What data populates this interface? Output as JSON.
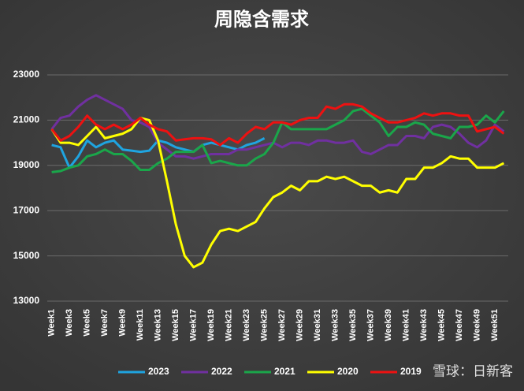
{
  "chart_data": {
    "type": "line",
    "title": "周隐含需求",
    "categories": [
      "Week1",
      null,
      "Week3",
      null,
      "Week5",
      null,
      "Week7",
      null,
      "Week9",
      null,
      "Week11",
      null,
      "Week13",
      null,
      "Week15",
      null,
      "Week17",
      null,
      "Week19",
      null,
      "Week21",
      null,
      "Week23",
      null,
      "Week25",
      null,
      "Week27",
      null,
      "Week29",
      null,
      "Week31",
      null,
      "Week33",
      null,
      "Week35",
      null,
      "Week37",
      null,
      "Week39",
      null,
      "Week41",
      null,
      "Week43",
      null,
      "Week45",
      null,
      "Week47",
      null,
      "Week49",
      null,
      "Week51",
      null
    ],
    "ylim": [
      13000,
      23000
    ],
    "yticks": [
      13000,
      15000,
      17000,
      19000,
      21000,
      23000
    ],
    "grid": true,
    "legend": "bottom",
    "series": [
      {
        "name": "2023",
        "color": "#1fa4e0",
        "values": [
          19900,
          19800,
          18900,
          19400,
          20100,
          19800,
          20000,
          20100,
          19700,
          19650,
          19600,
          19650,
          20100,
          20000,
          19800,
          19700,
          19600,
          19900,
          20000,
          19900,
          19800,
          19700,
          19900,
          20000,
          20200,
          null,
          null,
          null,
          null,
          null,
          null,
          null,
          null,
          null,
          null,
          null,
          null,
          null,
          null,
          null,
          null,
          null,
          null,
          null,
          null,
          null,
          null,
          null,
          null,
          null,
          null,
          null
        ]
      },
      {
        "name": "2022",
        "color": "#7030a0",
        "values": [
          20600,
          21100,
          21200,
          21600,
          21900,
          22100,
          21900,
          21700,
          21500,
          21000,
          20900,
          20700,
          20000,
          19700,
          19400,
          19400,
          19300,
          19400,
          19500,
          19500,
          19500,
          19700,
          19700,
          19800,
          19900,
          20000,
          19800,
          20000,
          20000,
          19900,
          20100,
          20100,
          20000,
          20000,
          20100,
          19600,
          19500,
          19700,
          19900,
          19900,
          20300,
          20300,
          20200,
          20700,
          20800,
          20700,
          20400,
          20000,
          19800,
          20100,
          20800,
          20500
        ]
      },
      {
        "name": "2021",
        "color": "#1aa64a",
        "values": [
          18700,
          18750,
          18900,
          19000,
          19400,
          19500,
          19700,
          19500,
          19500,
          19200,
          18800,
          18800,
          19100,
          19300,
          19600,
          19600,
          19600,
          19900,
          19100,
          19200,
          19100,
          19000,
          19000,
          19300,
          19500,
          20000,
          20900,
          20600,
          20600,
          20600,
          20600,
          20600,
          20800,
          21000,
          21400,
          21500,
          21200,
          20900,
          20300,
          20700,
          20700,
          20900,
          20800,
          20400,
          20300,
          20200,
          20700,
          20700,
          20800,
          21200,
          20900,
          21400
        ]
      },
      {
        "name": "2020",
        "color": "#ffff00",
        "values": [
          20600,
          20000,
          20000,
          19900,
          20300,
          20700,
          20200,
          20300,
          20400,
          20600,
          21100,
          21000,
          20100,
          18300,
          16400,
          15000,
          14500,
          14700,
          15500,
          16100,
          16200,
          16100,
          16300,
          16500,
          17100,
          17600,
          17800,
          18100,
          17900,
          18300,
          18300,
          18500,
          18400,
          18500,
          18300,
          18100,
          18100,
          17800,
          17900,
          17800,
          18400,
          18400,
          18900,
          18900,
          19100,
          19400,
          19300,
          19300,
          18900,
          18900,
          18900,
          19100
        ]
      },
      {
        "name": "2019",
        "color": "#ee1111",
        "values": [
          20600,
          20100,
          20300,
          20700,
          21200,
          20800,
          20600,
          20800,
          20600,
          20800,
          21100,
          20800,
          20600,
          20500,
          20100,
          20150,
          20200,
          20200,
          20150,
          19900,
          20200,
          20000,
          20400,
          20700,
          20600,
          20900,
          20900,
          20800,
          21000,
          21100,
          21100,
          21600,
          21500,
          21700,
          21700,
          21600,
          21300,
          21100,
          20900,
          20900,
          21000,
          21100,
          21300,
          21200,
          21300,
          21300,
          21200,
          21200,
          20500,
          20600,
          20700,
          20400
        ]
      }
    ]
  },
  "watermark": "雪球：日新客"
}
